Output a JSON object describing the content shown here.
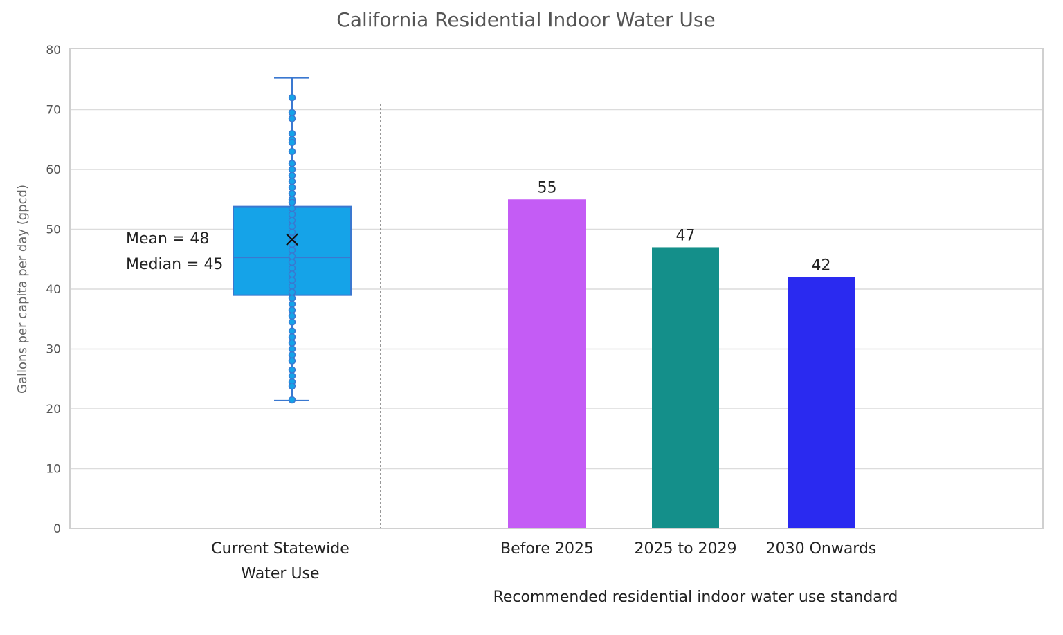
{
  "chart_data": {
    "type": "bar",
    "title": "California Residential Indoor Water Use",
    "ylabel": "Gallons per capita per day (gpcd)",
    "ylim": [
      0,
      80
    ],
    "yticks": [
      0,
      10,
      20,
      30,
      40,
      50,
      60,
      70,
      80
    ],
    "grid": true,
    "boxplot": {
      "category": "Current Statewide Water Use",
      "category_lines": [
        "Current Statewide",
        "Water Use"
      ],
      "min": 21.4,
      "q1": 39.0,
      "median": 45.3,
      "q3": 53.8,
      "max": 75.3,
      "mean": 48.3,
      "mean_label": "Mean = 48",
      "median_label": "Median = 45",
      "points": [
        72,
        69.5,
        68.5,
        66,
        65,
        64.5,
        63,
        61,
        60,
        59,
        58,
        57,
        56,
        55,
        54.5,
        53.5,
        52.5,
        51.5,
        50.5,
        49.5,
        48.5,
        47.5,
        46.5,
        45.5,
        44.5,
        43.5,
        42.5,
        41.5,
        40.5,
        39.5,
        38.5,
        37.5,
        36.5,
        35.5,
        34.5,
        33,
        32,
        31,
        30,
        29,
        28,
        26.5,
        25.5,
        24.5,
        23.8,
        21.5
      ],
      "color": "#15a3e8",
      "edge_color": "#3a78d0"
    },
    "categories": [
      "Before 2025",
      "2025 to 2029",
      "2030 Onwards"
    ],
    "values": [
      55,
      47,
      42
    ],
    "data_labels": [
      "55",
      "47",
      "42"
    ],
    "colors": [
      "#c45cf5",
      "#148f8a",
      "#2a2af0"
    ],
    "group_label": "Recommended residential indoor water use standard"
  }
}
